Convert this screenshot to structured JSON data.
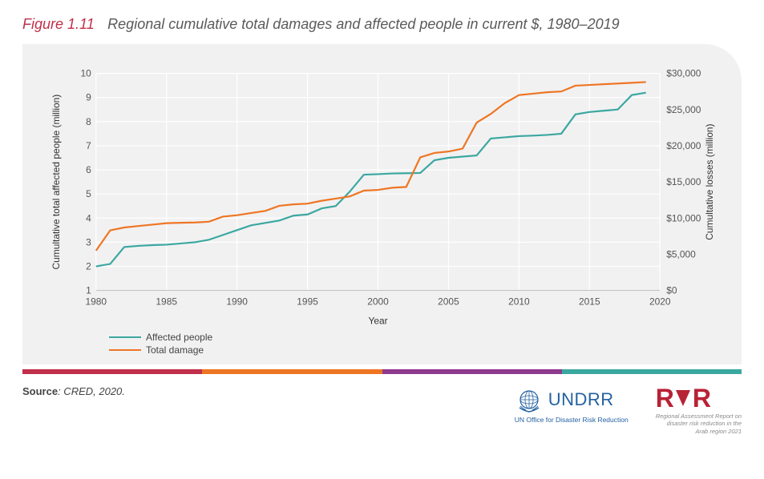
{
  "figure": {
    "number": "Figure 1.11",
    "title": "Regional cumulative total damages and affected people in current $, 1980–2019"
  },
  "chart": {
    "type": "line",
    "background_color": "#f1f1f2",
    "grid_color": "#ffffff",
    "axis_text_color": "#555555",
    "corner_radius_tr": 46,
    "x": {
      "label": "Year",
      "min": 1980,
      "max": 2020,
      "tick_step": 5,
      "ticks": [
        1980,
        1985,
        1990,
        1995,
        2000,
        2005,
        2010,
        2015,
        2020
      ]
    },
    "y_left": {
      "label": "Cumultative total affected people (million)",
      "min": 1,
      "max": 10,
      "tick_step": 1,
      "ticks": [
        1,
        2,
        3,
        4,
        5,
        6,
        7,
        8,
        9,
        10
      ]
    },
    "y_right": {
      "label": "Cumultative losses (million)",
      "min": 0,
      "max": 30000,
      "tick_step": 5000,
      "ticks": [
        0,
        5000,
        10000,
        15000,
        20000,
        25000,
        30000
      ],
      "prefix": "$",
      "format_thousands": true
    },
    "series": [
      {
        "name": "Affected people",
        "axis": "left",
        "color": "#3ba8a0",
        "line_width": 2.2,
        "years": [
          1980,
          1981,
          1982,
          1983,
          1984,
          1985,
          1986,
          1987,
          1988,
          1989,
          1990,
          1991,
          1992,
          1993,
          1994,
          1995,
          1996,
          1997,
          1998,
          1999,
          2000,
          2001,
          2002,
          2003,
          2004,
          2005,
          2006,
          2007,
          2008,
          2009,
          2010,
          2011,
          2012,
          2013,
          2014,
          2015,
          2016,
          2017,
          2018,
          2019
        ],
        "values": [
          2.0,
          2.1,
          2.8,
          2.85,
          2.88,
          2.9,
          2.95,
          3.0,
          3.1,
          3.3,
          3.5,
          3.7,
          3.8,
          3.9,
          4.1,
          4.15,
          4.4,
          4.5,
          5.1,
          5.8,
          5.82,
          5.85,
          5.86,
          5.87,
          6.4,
          6.5,
          6.55,
          6.6,
          7.3,
          7.35,
          7.4,
          7.42,
          7.45,
          7.5,
          8.3,
          8.4,
          8.45,
          8.5,
          9.1,
          9.2
        ]
      },
      {
        "name": "Total damage",
        "axis": "right",
        "color": "#ee7623",
        "line_width": 2.2,
        "years": [
          1980,
          1981,
          1982,
          1983,
          1984,
          1985,
          1986,
          1987,
          1988,
          1989,
          1990,
          1991,
          1992,
          1993,
          1994,
          1995,
          1996,
          1997,
          1998,
          1999,
          2000,
          2001,
          2002,
          2003,
          2004,
          2005,
          2006,
          2007,
          2008,
          2009,
          2010,
          2011,
          2012,
          2013,
          2014,
          2015,
          2016,
          2017,
          2018,
          2019
        ],
        "values": [
          5500,
          8300,
          8700,
          8900,
          9100,
          9300,
          9350,
          9400,
          9500,
          10200,
          10400,
          10700,
          11000,
          11700,
          11900,
          12000,
          12400,
          12700,
          13000,
          13800,
          13900,
          14200,
          14300,
          18400,
          19000,
          19200,
          19600,
          23200,
          24400,
          25900,
          27000,
          27200,
          27400,
          27500,
          28300,
          28400,
          28500,
          28600,
          28700,
          28800
        ]
      }
    ],
    "legend": {
      "position": "bottom-left",
      "items": [
        "Affected people",
        "Total damage"
      ]
    }
  },
  "stripe_colors": [
    "#c12f4a",
    "#ee7623",
    "#8e3a8f",
    "#3ba8a0"
  ],
  "source": {
    "label": "Source",
    "text": ": CRED, 2020."
  },
  "logos": {
    "undrr": {
      "title": "UNDRR",
      "subtitle": "UN Office for Disaster Risk Reduction",
      "color": "#2462a2"
    },
    "rar": {
      "title": "RAR",
      "color": "#b82235",
      "subtitle_lines": [
        "Regional Assessment Report on",
        "disaster risk reduction in the",
        "Arab region 2021"
      ]
    }
  }
}
